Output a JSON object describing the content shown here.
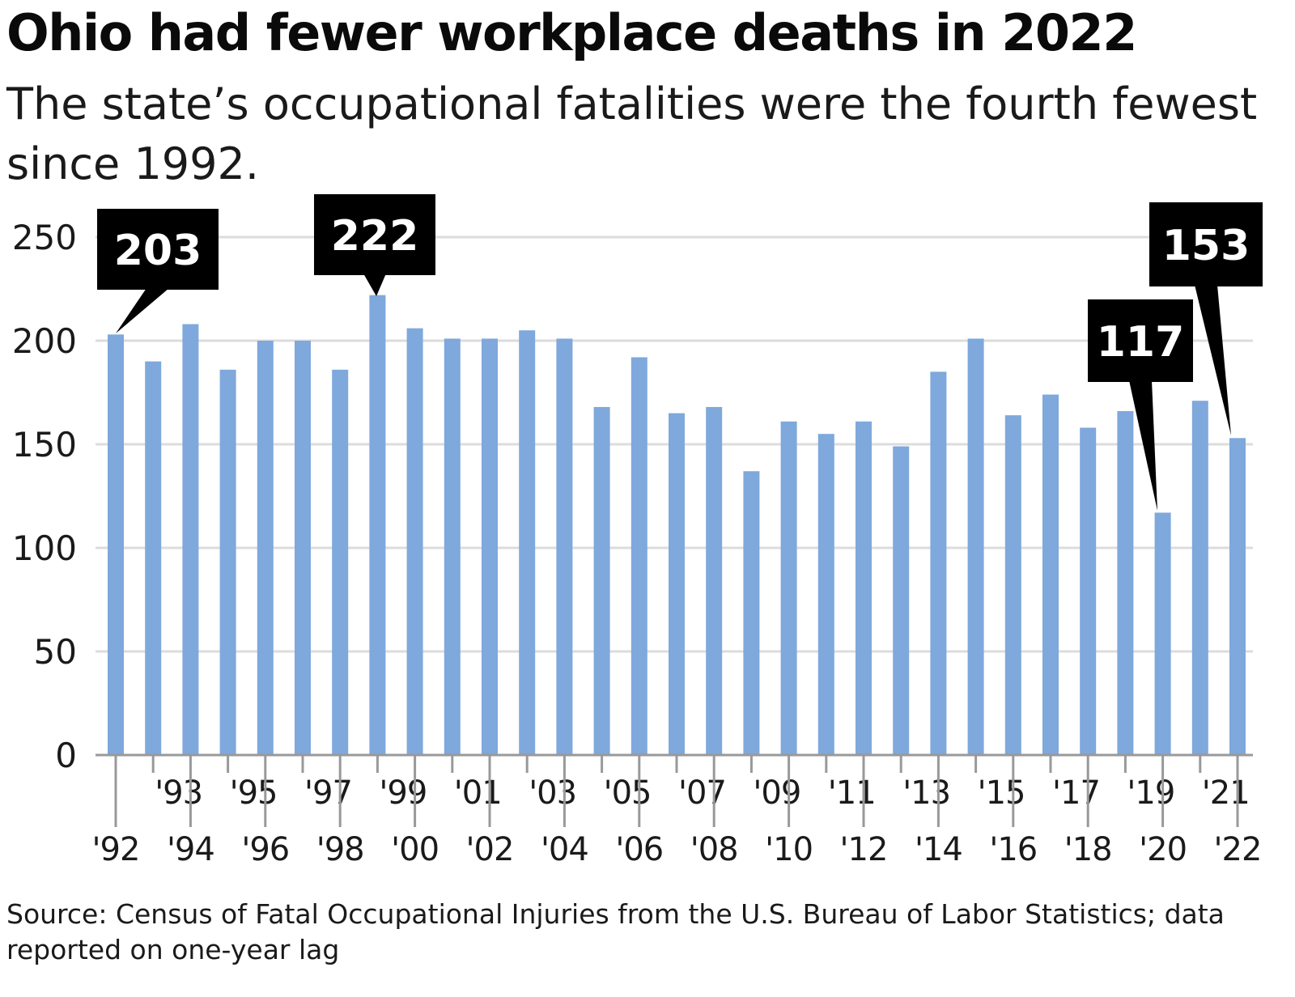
{
  "title": "Ohio had fewer workplace deaths in 2022",
  "subtitle": "The state’s occupational fatalities were the fourth fewest since 1992.",
  "source": "Source: Census of Fatal Occupational Injuries from the U.S. Bureau of Labor Statistics; data reported on one-year lag",
  "colors": {
    "bar": "#7fa8dc",
    "grid": "#dcdcdc",
    "axis": "#999999",
    "callout": "#000000"
  },
  "chart_data": {
    "type": "bar",
    "title": "Ohio had fewer workplace deaths in 2022",
    "xlabel": "",
    "ylabel": "",
    "ylim": [
      0,
      250
    ],
    "yticks": [
      0,
      50,
      100,
      150,
      200,
      250
    ],
    "grid": true,
    "categories": [
      "'92",
      "'93",
      "'94",
      "'95",
      "'96",
      "'97",
      "'98",
      "'99",
      "'00",
      "'01",
      "'02",
      "'03",
      "'04",
      "'05",
      "'06",
      "'07",
      "'08",
      "'09",
      "'10",
      "'11",
      "'12",
      "'13",
      "'14",
      "'15",
      "'16",
      "'17",
      "'18",
      "'19",
      "'20",
      "'21",
      "'22"
    ],
    "values": [
      203,
      190,
      208,
      186,
      200,
      200,
      186,
      222,
      206,
      201,
      201,
      205,
      201,
      168,
      192,
      165,
      168,
      137,
      161,
      155,
      161,
      149,
      185,
      201,
      164,
      174,
      158,
      166,
      117,
      171,
      153
    ],
    "callouts": [
      {
        "category": "'92",
        "label": "203"
      },
      {
        "category": "'99",
        "label": "222"
      },
      {
        "category": "'20",
        "label": "117"
      },
      {
        "category": "'22",
        "label": "153"
      }
    ]
  }
}
